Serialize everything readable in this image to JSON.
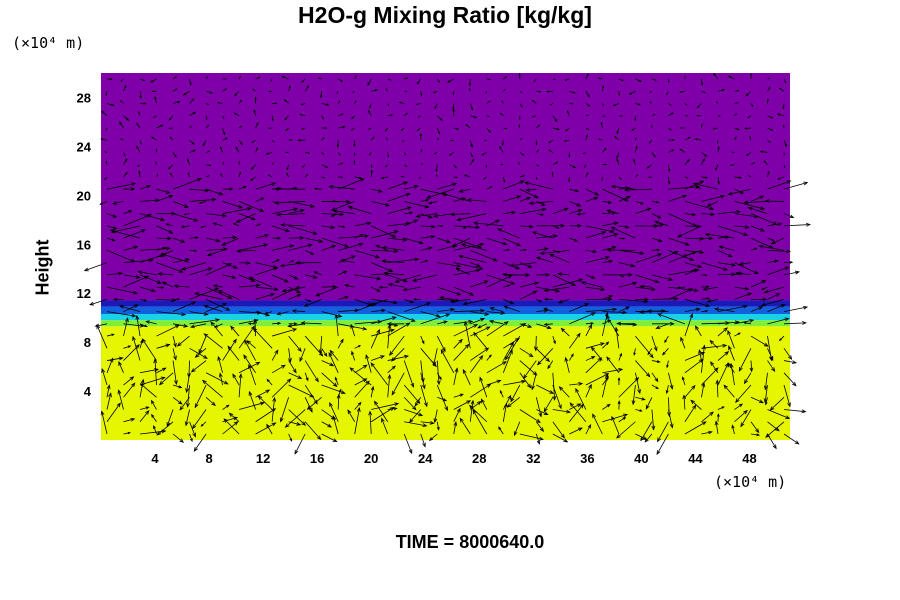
{
  "chart_data": {
    "type": "heatmap",
    "title": "H2O-g Mixing Ratio [kg/kg]",
    "ylabel": "Height",
    "xlabel": "",
    "x_unit": "(×10⁴ m)",
    "y_unit": "(×10⁴ m)",
    "xlim": [
      0,
      51
    ],
    "ylim": [
      0,
      30
    ],
    "x_ticks": [
      "4",
      "8",
      "12",
      "16",
      "20",
      "24",
      "28",
      "32",
      "36",
      "40",
      "44",
      "48"
    ],
    "y_ticks": [
      "4",
      "8",
      "12",
      "16",
      "20",
      "24",
      "28"
    ],
    "x_tick_values": [
      4,
      8,
      12,
      16,
      20,
      24,
      28,
      32,
      36,
      40,
      44,
      48
    ],
    "y_tick_values": [
      4,
      8,
      12,
      16,
      20,
      24,
      28
    ],
    "layers": [
      {
        "y_from": 0,
        "y_to": 9.3,
        "color": "#e6f500"
      },
      {
        "y_from": 9.3,
        "y_to": 9.8,
        "color": "#7ef03a"
      },
      {
        "y_from": 9.8,
        "y_to": 10.3,
        "color": "#19d2e6"
      },
      {
        "y_from": 10.3,
        "y_to": 10.9,
        "color": "#1060e0"
      },
      {
        "y_from": 10.9,
        "y_to": 11.4,
        "color": "#1a1ab8"
      },
      {
        "y_from": 11.4,
        "y_to": 30,
        "color": "#7f00a8"
      }
    ],
    "overlay": "wind-vector-arrows",
    "grid": false
  },
  "footer": {
    "time_label": "TIME = 8000640.0"
  }
}
